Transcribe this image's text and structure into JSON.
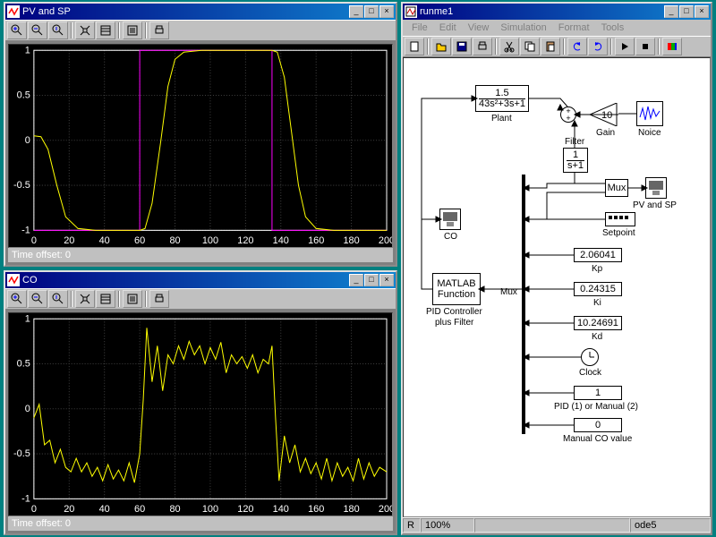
{
  "desktop_bg": "#008080",
  "scope1": {
    "title": "PV and SP",
    "status": "Time offset:  0",
    "x": {
      "min": 0,
      "max": 200,
      "ticks": [
        0,
        20,
        40,
        60,
        80,
        100,
        120,
        140,
        160,
        180,
        200
      ]
    },
    "y": {
      "min": -1,
      "max": 1,
      "ticks": [
        -1,
        -0.5,
        0,
        0.5,
        1
      ]
    },
    "bg": "#000000",
    "grid": "#404040",
    "axis": "#ffffff",
    "series": [
      {
        "color": "#ff00ff",
        "pts": [
          [
            0,
            -1
          ],
          [
            60,
            -1
          ],
          [
            60,
            1
          ],
          [
            135,
            1
          ],
          [
            135,
            -1
          ],
          [
            200,
            -1
          ]
        ]
      },
      {
        "color": "#ffff00",
        "pts": [
          [
            0,
            0.05
          ],
          [
            4,
            0.04
          ],
          [
            8,
            -0.1
          ],
          [
            13,
            -0.5
          ],
          [
            18,
            -0.85
          ],
          [
            25,
            -0.98
          ],
          [
            35,
            -1
          ],
          [
            60,
            -1
          ],
          [
            63,
            -0.98
          ],
          [
            67,
            -0.7
          ],
          [
            72,
            0
          ],
          [
            76,
            0.6
          ],
          [
            80,
            0.9
          ],
          [
            85,
            0.98
          ],
          [
            95,
            1
          ],
          [
            135,
            1
          ],
          [
            138,
            0.98
          ],
          [
            142,
            0.7
          ],
          [
            146,
            0.1
          ],
          [
            150,
            -0.5
          ],
          [
            154,
            -0.85
          ],
          [
            160,
            -0.98
          ],
          [
            170,
            -1
          ],
          [
            200,
            -1
          ]
        ]
      }
    ]
  },
  "scope2": {
    "title": "CO",
    "status": "Time offset:  0",
    "x": {
      "min": 0,
      "max": 200,
      "ticks": [
        0,
        20,
        40,
        60,
        80,
        100,
        120,
        140,
        160,
        180,
        200
      ]
    },
    "y": {
      "min": -1,
      "max": 1,
      "ticks": [
        -1,
        -0.5,
        0,
        0.5,
        1
      ]
    },
    "bg": "#000000",
    "grid": "#404040",
    "axis": "#ffffff",
    "series": [
      {
        "color": "#ffff00",
        "pts": [
          [
            0,
            -0.1
          ],
          [
            3,
            0.05
          ],
          [
            6,
            -0.4
          ],
          [
            9,
            -0.35
          ],
          [
            12,
            -0.6
          ],
          [
            15,
            -0.45
          ],
          [
            18,
            -0.65
          ],
          [
            21,
            -0.7
          ],
          [
            24,
            -0.55
          ],
          [
            27,
            -0.7
          ],
          [
            30,
            -0.6
          ],
          [
            33,
            -0.75
          ],
          [
            36,
            -0.65
          ],
          [
            39,
            -0.8
          ],
          [
            42,
            -0.62
          ],
          [
            45,
            -0.78
          ],
          [
            48,
            -0.68
          ],
          [
            51,
            -0.8
          ],
          [
            54,
            -0.6
          ],
          [
            57,
            -0.82
          ],
          [
            60,
            -0.5
          ],
          [
            62,
            0.1
          ],
          [
            64,
            0.9
          ],
          [
            67,
            0.3
          ],
          [
            70,
            0.7
          ],
          [
            73,
            0.2
          ],
          [
            76,
            0.6
          ],
          [
            79,
            0.5
          ],
          [
            82,
            0.7
          ],
          [
            85,
            0.55
          ],
          [
            88,
            0.75
          ],
          [
            91,
            0.6
          ],
          [
            94,
            0.7
          ],
          [
            97,
            0.5
          ],
          [
            100,
            0.68
          ],
          [
            103,
            0.55
          ],
          [
            106,
            0.74
          ],
          [
            109,
            0.4
          ],
          [
            112,
            0.6
          ],
          [
            115,
            0.5
          ],
          [
            118,
            0.58
          ],
          [
            121,
            0.45
          ],
          [
            124,
            0.6
          ],
          [
            127,
            0.4
          ],
          [
            130,
            0.55
          ],
          [
            133,
            0.5
          ],
          [
            135,
            0.7
          ],
          [
            137,
            -0.1
          ],
          [
            139,
            -0.8
          ],
          [
            142,
            -0.3
          ],
          [
            145,
            -0.6
          ],
          [
            148,
            -0.4
          ],
          [
            151,
            -0.7
          ],
          [
            154,
            -0.55
          ],
          [
            157,
            -0.72
          ],
          [
            160,
            -0.6
          ],
          [
            163,
            -0.78
          ],
          [
            166,
            -0.55
          ],
          [
            169,
            -0.8
          ],
          [
            172,
            -0.6
          ],
          [
            175,
            -0.75
          ],
          [
            178,
            -0.65
          ],
          [
            181,
            -0.8
          ],
          [
            184,
            -0.55
          ],
          [
            187,
            -0.78
          ],
          [
            190,
            -0.6
          ],
          [
            193,
            -0.75
          ],
          [
            196,
            -0.65
          ],
          [
            200,
            -0.7
          ]
        ]
      }
    ]
  },
  "model": {
    "title": "runme1",
    "menus": [
      "File",
      "Edit",
      "View",
      "Simulation",
      "Format",
      "Tools"
    ],
    "status": {
      "ready": "R",
      "zoom": "100%",
      "solver": "ode5"
    },
    "blocks": {
      "plant": {
        "num": "1.5",
        "den": "43s²+3s+1",
        "label": "Plant"
      },
      "gain": {
        "value": "10",
        "label": "Gain"
      },
      "noise": {
        "label": "Noice"
      },
      "filter": {
        "num": "1",
        "den": "s+1",
        "label": "Filter"
      },
      "co_scope": {
        "label": "CO"
      },
      "matlab": {
        "line1": "MATLAB",
        "line2": "Function",
        "label1": "PID Controller",
        "label2": "plus Filter"
      },
      "mux_small": {
        "label": "Mux"
      },
      "pvsp": {
        "label": "PV and SP"
      },
      "setpoint": {
        "label": "Setpoint"
      },
      "kp": {
        "value": "2.06041",
        "label": "Kp"
      },
      "ki": {
        "value": "0.24315",
        "label": "Ki"
      },
      "kd": {
        "value": "10.24691",
        "label": "Kd"
      },
      "clock": {
        "label": "Clock"
      },
      "mode": {
        "value": "1",
        "label": "PID (1) or Manual (2)"
      },
      "manual": {
        "value": "0",
        "label": "Manual CO value"
      },
      "mux_big": {
        "label": "Mux"
      }
    }
  }
}
